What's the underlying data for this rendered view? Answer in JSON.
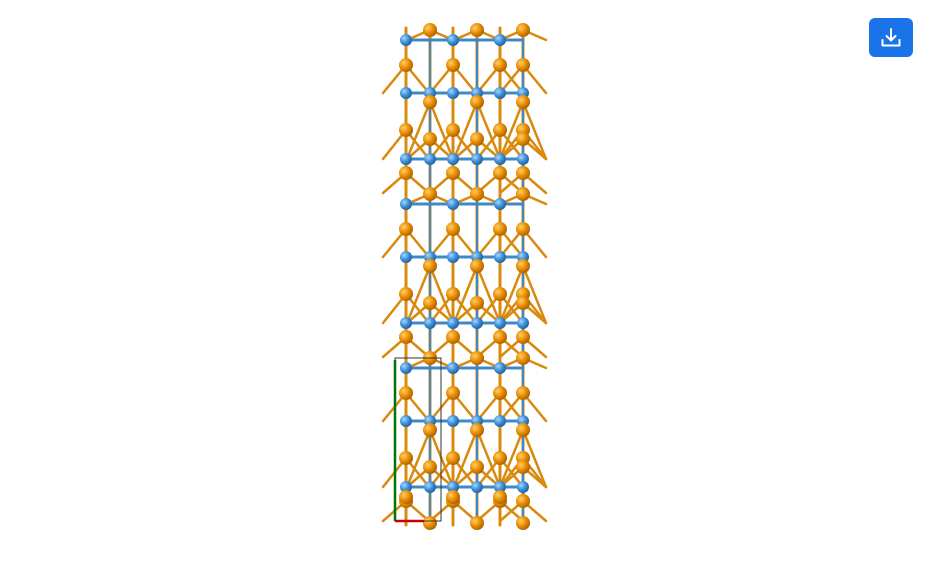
{
  "viewer": {
    "background": "#ffffff",
    "atom_colors": {
      "orange": "#e88c00",
      "blue": "#3a8fd6"
    },
    "bond_colors": {
      "orange": "#d98a0c",
      "blue": "#3f88c8"
    },
    "unit_cell_color": "#333333",
    "axis_colors": {
      "a": "#cc0000",
      "b": "#007700"
    }
  },
  "toolbar": {
    "download_icon": "download-icon",
    "button_color": "#1a73e8"
  }
}
